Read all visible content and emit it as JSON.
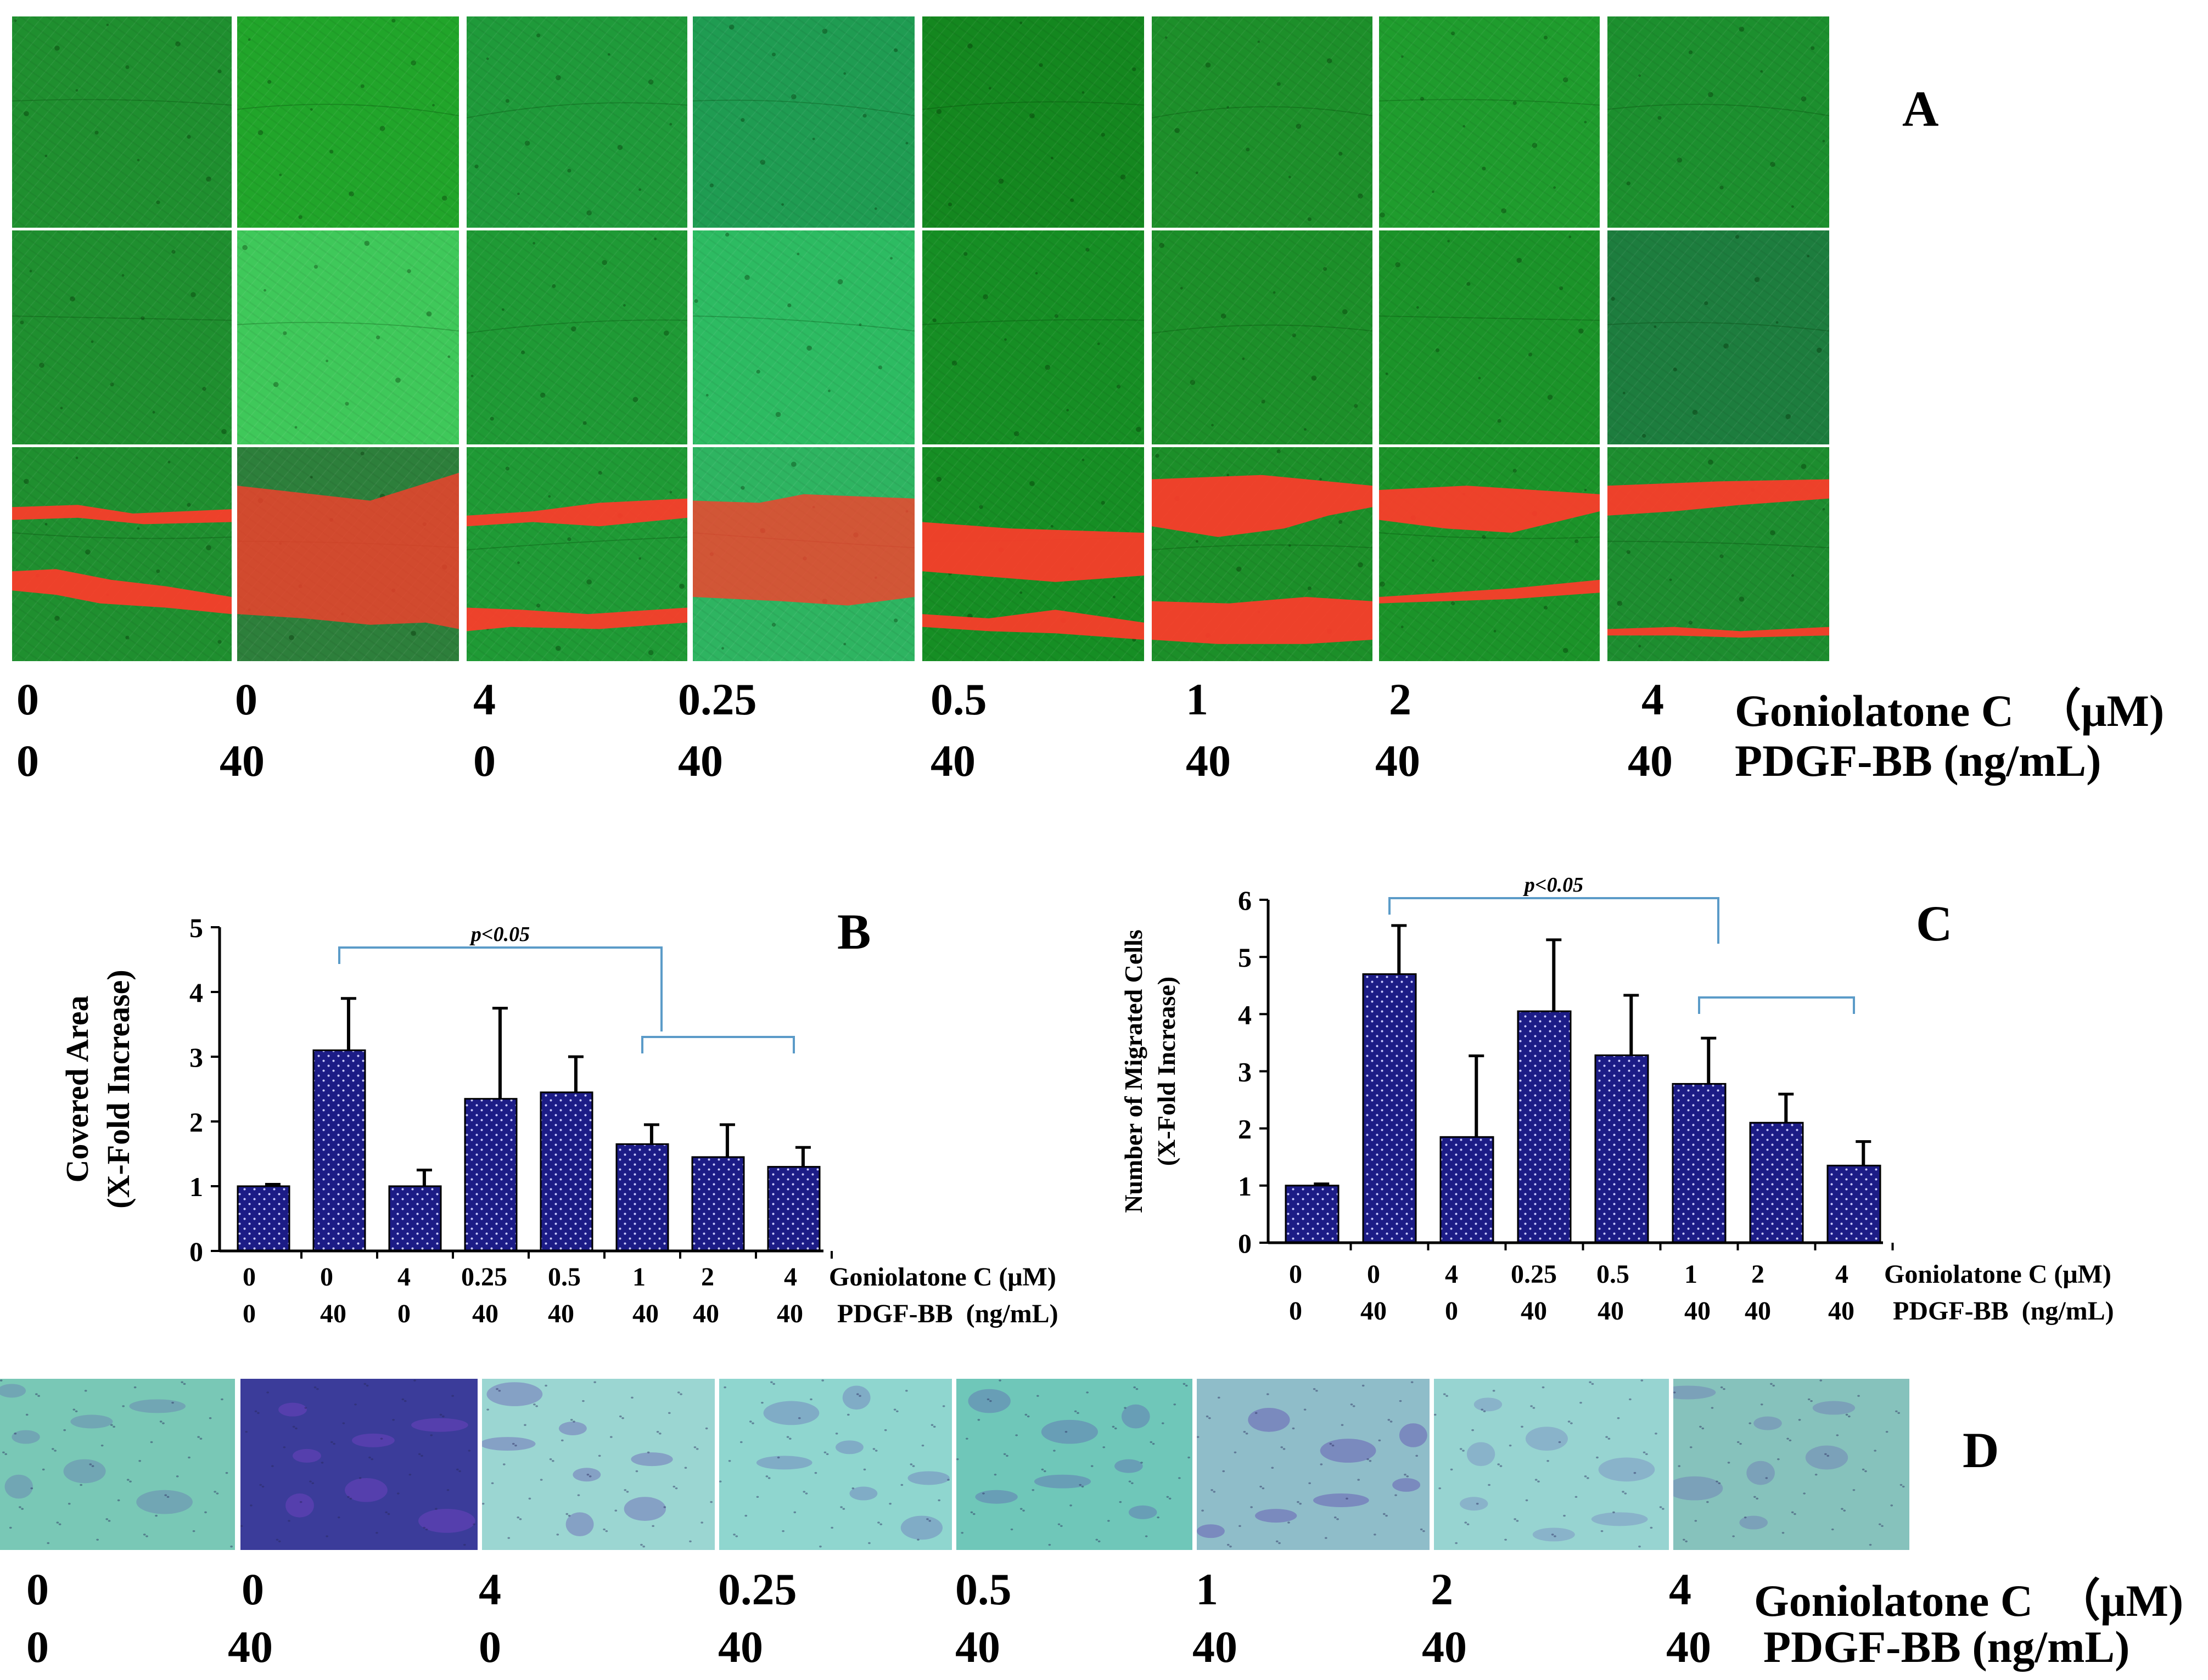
{
  "panels": {
    "a": {
      "letter": "A"
    },
    "b": {
      "letter": "B"
    },
    "c": {
      "letter": "C"
    },
    "d": {
      "letter": "D"
    }
  },
  "conditions": {
    "goniolatone_c": [
      "0",
      "0",
      "4",
      "0.25",
      "0.5",
      "1",
      "2",
      "4"
    ],
    "pdgf_bb": [
      "0",
      "40",
      "0",
      "40",
      "40",
      "40",
      "40",
      "40"
    ],
    "label_goniolatone_big": "Goniolatone C  （μM)",
    "label_pdgf_big": "PDGF-BB (ng/mL)",
    "label_goniolatone_small": "Goniolatone C (μM)",
    "label_pdgf_small": "PDGF-BB  (ng/mL)"
  },
  "significance": {
    "label": "p<0.05"
  },
  "colors": {
    "bar_fill": "#1c1c86",
    "bracket": "#5b9bc8",
    "wound_red": "#ff3b2a",
    "cell_green": "#22a844",
    "stain_teal": "#6fc9b6",
    "stain_purple": "#6a4fb4"
  },
  "chart_data": [
    {
      "id": "B",
      "type": "bar",
      "categories": [
        "0/0",
        "0/40",
        "4/0",
        "0.25/40",
        "0.5/40",
        "1/40",
        "2/40",
        "4/40"
      ],
      "values": [
        1.0,
        3.1,
        1.0,
        2.35,
        2.45,
        1.65,
        1.45,
        1.3
      ],
      "errors": [
        0.03,
        0.8,
        0.25,
        1.4,
        0.55,
        0.3,
        0.5,
        0.3
      ],
      "ylabel_line1": "Covered Area",
      "ylabel_line2": "(X-Fold Increase)",
      "ylim": [
        0,
        5
      ],
      "yticks": [
        "0",
        "1",
        "2",
        "3",
        "4",
        "5"
      ],
      "xlabel": ""
    },
    {
      "id": "C",
      "type": "bar",
      "categories": [
        "0/0",
        "0/40",
        "4/0",
        "0.25/40",
        "0.5/40",
        "1/40",
        "2/40",
        "4/40"
      ],
      "values": [
        1.0,
        4.7,
        1.85,
        4.05,
        3.28,
        2.78,
        2.1,
        1.35
      ],
      "errors": [
        0.03,
        0.85,
        1.42,
        1.25,
        1.05,
        0.8,
        0.5,
        0.42
      ],
      "ylabel_line1": "Number of Migrated Cells",
      "ylabel_line2": "(X-Fold Increase)",
      "ylim": [
        0,
        6
      ],
      "yticks": [
        "0",
        "1",
        "2",
        "3",
        "4",
        "5",
        "6"
      ],
      "xlabel": ""
    }
  ]
}
